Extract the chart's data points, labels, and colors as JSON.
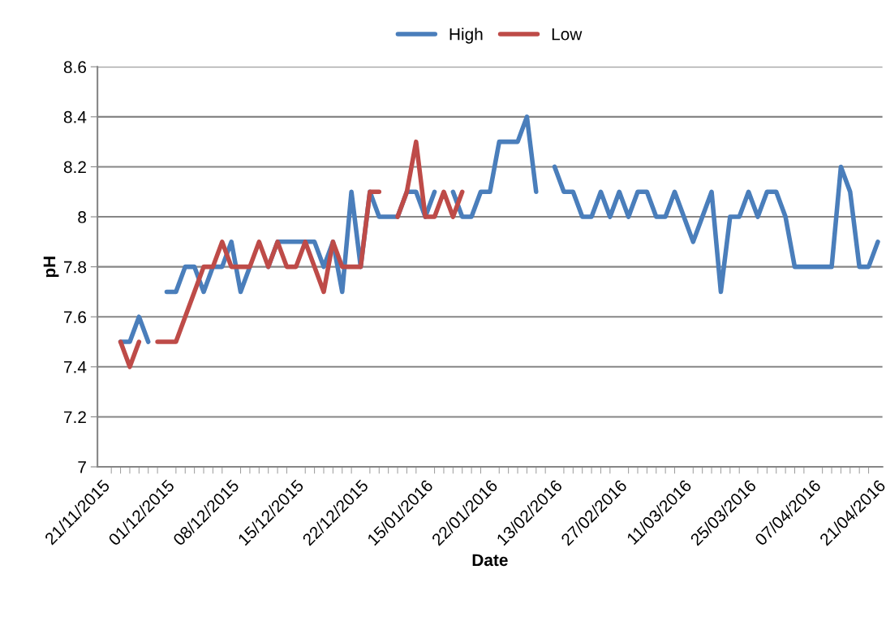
{
  "chart_data": {
    "type": "line",
    "xlabel": "Date",
    "ylabel": "pH",
    "categories": [
      "21/11/2015",
      null,
      null,
      null,
      null,
      null,
      null,
      "01/12/2015",
      null,
      null,
      null,
      null,
      null,
      null,
      "08/12/2015",
      null,
      null,
      null,
      null,
      null,
      null,
      "15/12/2015",
      null,
      null,
      null,
      null,
      null,
      null,
      "22/12/2015",
      null,
      null,
      null,
      null,
      null,
      null,
      "15/01/2016",
      null,
      null,
      null,
      null,
      null,
      null,
      "22/01/2016",
      null,
      null,
      null,
      null,
      null,
      null,
      "13/02/2016",
      null,
      null,
      null,
      null,
      null,
      null,
      "27/02/2016",
      null,
      null,
      null,
      null,
      null,
      null,
      "11/03/2016",
      null,
      null,
      null,
      null,
      null,
      null,
      "25/03/2016",
      null,
      null,
      null,
      null,
      null,
      null,
      "07/04/2016",
      null,
      null,
      null,
      null,
      null,
      null,
      "21/04/2016"
    ],
    "series": [
      {
        "name": "High",
        "color": "#4a7ebb",
        "values": [
          null,
          null,
          7.5,
          7.5,
          7.6,
          7.5,
          null,
          7.7,
          7.7,
          7.8,
          7.8,
          7.7,
          7.8,
          7.8,
          7.9,
          7.7,
          7.8,
          null,
          7.8,
          7.9,
          7.9,
          7.9,
          7.9,
          7.9,
          7.8,
          7.9,
          7.7,
          8.1,
          7.8,
          8.1,
          8.0,
          8.0,
          8.0,
          8.1,
          8.1,
          8.0,
          8.1,
          null,
          8.1,
          8.0,
          8.0,
          8.1,
          8.1,
          8.3,
          8.3,
          8.3,
          8.4,
          8.1,
          null,
          8.2,
          8.1,
          8.1,
          8.0,
          8.0,
          8.1,
          8.0,
          8.1,
          8.0,
          8.1,
          8.1,
          8.0,
          8.0,
          8.1,
          8.0,
          7.9,
          8.0,
          8.1,
          7.7,
          8.0,
          8.0,
          8.1,
          8.0,
          8.1,
          8.1,
          8.0,
          7.8,
          7.8,
          7.8,
          7.8,
          7.8,
          8.2,
          8.1,
          7.8,
          7.8,
          7.9
        ]
      },
      {
        "name": "Low",
        "color": "#be4b48",
        "values": [
          null,
          null,
          7.5,
          7.4,
          7.5,
          null,
          7.5,
          7.5,
          7.5,
          7.6,
          7.7,
          7.8,
          7.8,
          7.9,
          7.8,
          7.8,
          7.8,
          7.9,
          7.8,
          7.9,
          7.8,
          7.8,
          7.9,
          7.8,
          7.7,
          7.9,
          7.8,
          7.8,
          7.8,
          8.1,
          8.1,
          null,
          8.0,
          8.1,
          8.3,
          8.0,
          8.0,
          8.1,
          8.0,
          8.1,
          null,
          null,
          null,
          null,
          null,
          null,
          null,
          null,
          null,
          null,
          null,
          null,
          null,
          null,
          null,
          null,
          null,
          null,
          null,
          null,
          null,
          null,
          null,
          null,
          null,
          null,
          null,
          null,
          null,
          null,
          null,
          null,
          null,
          null,
          null,
          null,
          null,
          null,
          null,
          null,
          null,
          null,
          null,
          null,
          null
        ]
      }
    ],
    "ylim": [
      7,
      8.6
    ],
    "yticks": [
      7,
      7.2,
      7.4,
      7.6,
      7.8,
      8,
      8.2,
      8.4,
      8.6
    ],
    "grid": "y",
    "legend": "top",
    "marker": "none",
    "line_style": "solid"
  }
}
